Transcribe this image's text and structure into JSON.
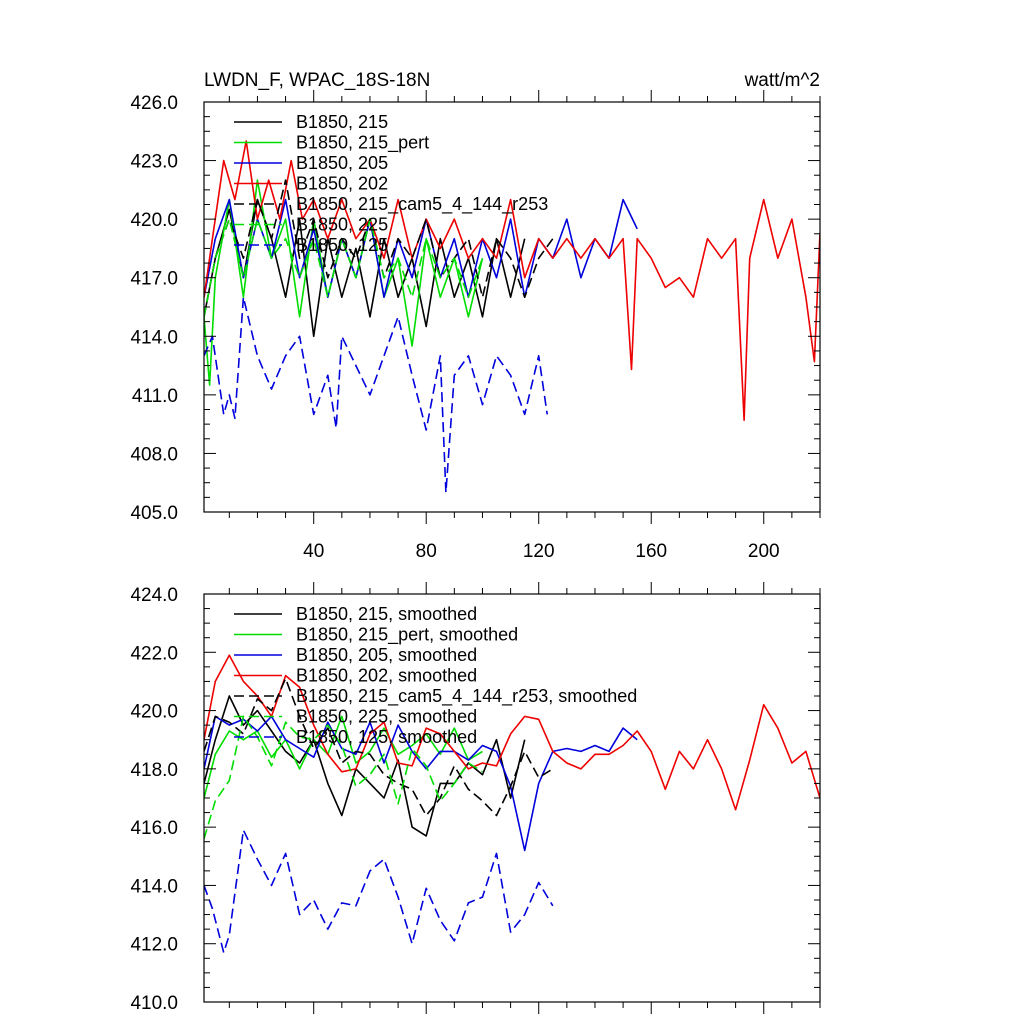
{
  "chart_data": [
    {
      "type": "line",
      "title": "LWDN_F, WPAC_18S-18N",
      "units": "watt/m^2",
      "xlim": [
        1,
        220
      ],
      "ylim": [
        405,
        426
      ],
      "yticks": [
        405,
        408,
        411,
        414,
        417,
        420,
        423,
        426
      ],
      "ytick_labels": [
        "405.0",
        "408.0",
        "411.0",
        "414.0",
        "417.0",
        "420.0",
        "423.0",
        "426.0"
      ],
      "xticks": [
        40,
        80,
        120,
        160,
        200
      ],
      "xtick_labels": [
        "40",
        "80",
        "120",
        "160",
        "200"
      ],
      "legend_position": "top-left",
      "series": [
        {
          "name": "B1850, 215",
          "color": "#000000",
          "dash": "solid",
          "x": [
            1,
            5,
            10,
            15,
            20,
            25,
            30,
            35,
            40,
            45,
            50,
            55,
            60,
            65,
            70,
            75,
            80,
            85,
            90,
            95,
            100,
            105,
            110,
            115
          ],
          "y": [
            415,
            418,
            420.5,
            417,
            421,
            419,
            416,
            420,
            414,
            419,
            416,
            418.5,
            415,
            419,
            416,
            418,
            414.5,
            419,
            416,
            418,
            415,
            419,
            416,
            419
          ]
        },
        {
          "name": "B1850, 215_pert",
          "color": "#00dd00",
          "dash": "solid",
          "x": [
            1,
            3,
            5,
            10,
            15,
            20,
            25,
            30,
            35,
            40,
            45,
            50,
            55,
            60,
            65,
            70,
            75,
            80,
            85,
            90,
            95,
            100
          ],
          "y": [
            415,
            411.5,
            417,
            421,
            416,
            422,
            418,
            420,
            415,
            420,
            416,
            419,
            417,
            420,
            416,
            418,
            413.5,
            419,
            416,
            418,
            415,
            418
          ]
        },
        {
          "name": "B1850, 205",
          "color": "#0000dd",
          "dash": "solid",
          "x": [
            1,
            5,
            10,
            15,
            20,
            25,
            30,
            35,
            40,
            45,
            50,
            55,
            60,
            65,
            70,
            75,
            80,
            85,
            90,
            95,
            100,
            105,
            110,
            115,
            120,
            125,
            130,
            135,
            140,
            145,
            150,
            155
          ],
          "y": [
            416,
            419,
            421,
            417,
            420,
            418,
            421,
            417,
            419.5,
            416,
            419,
            417,
            420,
            416,
            419,
            417,
            420,
            417,
            419,
            416,
            419,
            417,
            420,
            416,
            419,
            418,
            420,
            417,
            419,
            418,
            421,
            419.5
          ]
        },
        {
          "name": "B1850, 202",
          "color": "#ee0000",
          "dash": "solid",
          "x": [
            1,
            4,
            8,
            12,
            16,
            20,
            24,
            28,
            32,
            36,
            40,
            45,
            50,
            55,
            60,
            65,
            70,
            75,
            80,
            85,
            90,
            95,
            100,
            105,
            110,
            115,
            120,
            125,
            130,
            135,
            140,
            145,
            150,
            153,
            155,
            160,
            165,
            170,
            175,
            180,
            185,
            190,
            193,
            195,
            200,
            205,
            210,
            215,
            218,
            220
          ],
          "y": [
            416,
            419,
            423,
            421,
            424,
            420,
            422,
            420,
            423,
            420,
            421,
            419,
            421,
            419,
            420,
            418,
            421,
            418,
            420,
            418.5,
            420,
            418,
            419,
            418,
            421,
            417,
            419,
            418,
            419,
            418,
            419,
            418,
            419,
            412.3,
            419,
            418,
            416.5,
            417,
            416,
            419,
            418,
            419,
            409.7,
            418,
            421,
            418,
            420,
            416,
            412.7,
            419.3
          ]
        },
        {
          "name": "B1850, 215_cam5_4_144_r253",
          "color": "#000000",
          "dash": "dashed",
          "x": [
            1,
            5,
            10,
            15,
            20,
            25,
            30,
            35,
            40,
            45,
            50,
            55,
            60,
            65,
            70,
            75,
            80,
            85,
            90,
            95,
            100,
            105,
            110,
            115,
            120,
            125
          ],
          "y": [
            415,
            418,
            420,
            418,
            421,
            419,
            422,
            418,
            420,
            417,
            419,
            418,
            420,
            417,
            419,
            418,
            420,
            417,
            418,
            419,
            416,
            419,
            418,
            416,
            418,
            419
          ]
        },
        {
          "name": "B1850, 225",
          "color": "#00dd00",
          "dash": "dashed",
          "x": [
            1,
            5,
            10,
            15,
            20,
            25,
            30,
            35,
            40,
            45,
            50,
            55,
            60,
            65,
            70,
            75,
            80,
            85,
            90,
            95,
            100
          ],
          "y": [
            415,
            418,
            420,
            417,
            420,
            418,
            419,
            417,
            419,
            416,
            419,
            417,
            420,
            417,
            418,
            416,
            419,
            417,
            418,
            416,
            418
          ]
        },
        {
          "name": "B1850, 125",
          "color": "#0000dd",
          "dash": "dashed",
          "x": [
            1,
            4,
            8,
            10,
            12,
            15,
            20,
            25,
            30,
            35,
            40,
            45,
            48,
            50,
            55,
            60,
            65,
            70,
            75,
            80,
            85,
            87,
            90,
            95,
            100,
            105,
            110,
            115,
            120,
            123
          ],
          "y": [
            413,
            414,
            410,
            411,
            409.8,
            416,
            413,
            411.3,
            413,
            414,
            410,
            412,
            409.3,
            414,
            412.5,
            411,
            413,
            415,
            412,
            409.2,
            413,
            406,
            412,
            413,
            410.5,
            413,
            412,
            410,
            413,
            410
          ]
        }
      ]
    },
    {
      "type": "line",
      "title": "",
      "ylim": [
        410,
        424
      ],
      "xlim": [
        1,
        220
      ],
      "yticks": [
        410,
        412,
        414,
        416,
        418,
        420,
        422,
        424
      ],
      "ytick_labels": [
        "410.0",
        "412.0",
        "414.0",
        "416.0",
        "418.0",
        "420.0",
        "422.0",
        "424.0"
      ],
      "legend_position": "top-left",
      "series": [
        {
          "name": "B1850, 215, smoothed",
          "color": "#000000",
          "dash": "solid",
          "x": [
            1,
            5,
            10,
            15,
            20,
            25,
            30,
            35,
            40,
            45,
            50,
            55,
            60,
            65,
            70,
            75,
            80,
            85,
            90,
            95,
            100,
            105,
            110,
            115
          ],
          "y": [
            417.5,
            419,
            420.5,
            419.5,
            420,
            419.3,
            418.6,
            418.2,
            419,
            417.5,
            416.4,
            418,
            417.5,
            417,
            418.3,
            416,
            415.7,
            417.5,
            417.5,
            418.2,
            417.8,
            419,
            417,
            419
          ]
        },
        {
          "name": "B1850, 215_pert, smoothed",
          "color": "#00dd00",
          "dash": "solid",
          "x": [
            1,
            5,
            10,
            15,
            20,
            25,
            30,
            35,
            40,
            45,
            50,
            55,
            60,
            65,
            70,
            75,
            80,
            85,
            90,
            95,
            100
          ],
          "y": [
            417,
            418.5,
            419.3,
            419,
            419.3,
            418.4,
            419,
            418,
            419,
            418.5,
            419.8,
            418.2,
            418.6,
            419.4,
            418.5,
            418.8,
            419.2,
            418.5,
            419.4,
            418.3,
            418.6
          ]
        },
        {
          "name": "B1850, 205, smoothed",
          "color": "#0000dd",
          "dash": "solid",
          "x": [
            1,
            5,
            10,
            15,
            20,
            25,
            30,
            35,
            40,
            45,
            50,
            55,
            60,
            65,
            70,
            75,
            80,
            85,
            90,
            95,
            100,
            105,
            110,
            115,
            120,
            125,
            130,
            135,
            140,
            145,
            150,
            155
          ],
          "y": [
            418,
            419.8,
            419.5,
            419.7,
            419.3,
            419.8,
            419,
            418.7,
            418.4,
            419.6,
            418.7,
            418.5,
            419.6,
            418.2,
            419.5,
            418.6,
            418,
            418.6,
            418.6,
            418.3,
            418.8,
            418.6,
            417.4,
            415.2,
            417.5,
            418.6,
            418.7,
            418.6,
            418.8,
            418.6,
            419.4,
            419
          ]
        },
        {
          "name": "B1850, 202, smoothed",
          "color": "#ee0000",
          "dash": "solid",
          "x": [
            1,
            5,
            10,
            15,
            20,
            25,
            30,
            35,
            40,
            45,
            50,
            55,
            60,
            65,
            70,
            75,
            80,
            85,
            90,
            95,
            100,
            105,
            110,
            115,
            120,
            125,
            130,
            135,
            140,
            145,
            150,
            155,
            160,
            165,
            170,
            175,
            180,
            185,
            190,
            195,
            200,
            205,
            210,
            215,
            220
          ],
          "y": [
            419,
            421,
            421.9,
            421,
            420.5,
            419.8,
            421.2,
            420.8,
            419.5,
            418.5,
            417.9,
            418,
            419.2,
            419.6,
            418.2,
            418.1,
            419.4,
            419.2,
            418.6,
            418,
            418.2,
            418.1,
            419.2,
            419.8,
            419.7,
            418.6,
            418.2,
            418,
            418.5,
            418.5,
            418.8,
            419.3,
            418.6,
            417.3,
            418.6,
            418,
            419,
            418,
            416.6,
            418.3,
            420.2,
            419.4,
            418.2,
            418.6,
            417
          ]
        },
        {
          "name": "B1850, 215_cam5_4_144_r253, smoothed",
          "color": "#000000",
          "dash": "dashed",
          "x": [
            1,
            5,
            10,
            15,
            20,
            25,
            30,
            35,
            40,
            45,
            50,
            55,
            60,
            65,
            70,
            75,
            80,
            85,
            90,
            95,
            100,
            105,
            110,
            115,
            120,
            125
          ],
          "y": [
            418.6,
            419.8,
            419.6,
            419.2,
            420.4,
            420,
            421.1,
            419.8,
            418.7,
            419.4,
            418.2,
            418.6,
            418.5,
            417.8,
            417.5,
            417.3,
            416.4,
            417,
            418.1,
            417.3,
            416.9,
            416.4,
            417.4,
            418.6,
            417.7,
            418
          ]
        },
        {
          "name": "B1850, 225, smoothed",
          "color": "#00dd00",
          "dash": "dashed",
          "x": [
            1,
            5,
            10,
            15,
            20,
            25,
            30,
            35,
            40,
            45,
            50,
            55,
            60,
            65,
            70,
            75,
            80,
            85,
            90,
            95,
            100
          ],
          "y": [
            415.6,
            416.9,
            417.6,
            419.8,
            419.1,
            418.1,
            419.6,
            419.1,
            419,
            419.5,
            418.8,
            417.4,
            417.8,
            418.5,
            416.8,
            418.7,
            418.1,
            416.9,
            417.5,
            418.2,
            417.9
          ]
        },
        {
          "name": "B1850, 125, smoothed",
          "color": "#0000dd",
          "dash": "dashed",
          "x": [
            1,
            4,
            8,
            10,
            15,
            20,
            25,
            30,
            35,
            40,
            45,
            50,
            55,
            60,
            65,
            70,
            75,
            80,
            85,
            90,
            95,
            100,
            105,
            110,
            115,
            120,
            125
          ],
          "y": [
            414,
            413.2,
            411.7,
            412.3,
            415.9,
            414.9,
            414,
            415.1,
            413,
            413.5,
            412.5,
            413.4,
            413.3,
            414.5,
            414.9,
            413.6,
            412,
            413.9,
            412.8,
            412.1,
            413.4,
            413.6,
            415.1,
            412.4,
            413,
            414.1,
            413.3
          ]
        }
      ]
    }
  ]
}
